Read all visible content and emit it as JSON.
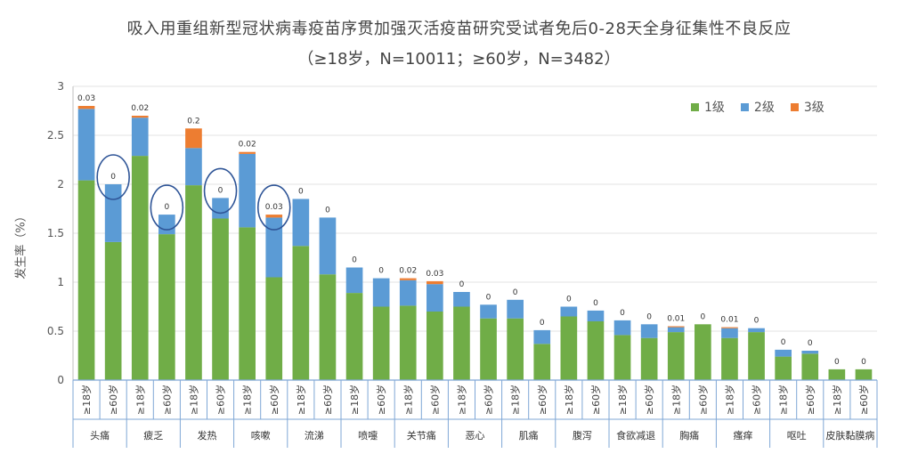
{
  "chart_data": {
    "type": "bar",
    "stacked": true,
    "title": "吸入用重组新型冠状病毒疫苗序贯加强灭活疫苗研究受试者免后0-28天全身征集性不良反应",
    "subtitle": "（≥18岁，N=10011；≥60岁，N=3482）",
    "ylabel": "发生率（%）",
    "ylim": [
      0,
      3
    ],
    "yticks": [
      "0",
      "0.5",
      "1",
      "1.5",
      "2",
      "2.5",
      "3"
    ],
    "grid": true,
    "legend_position": "top-right",
    "age_groups": [
      "≥18岁",
      "≥60岁"
    ],
    "groups": [
      "头痛",
      "疲乏",
      "发热",
      "咳嗽",
      "流涕",
      "喷嚏",
      "关节痛",
      "恶心",
      "肌痛",
      "腹泻",
      "食欲减退",
      "胸痛",
      "瘙痒",
      "呕吐",
      "皮肤黏膜病"
    ],
    "series": [
      {
        "name": "1级",
        "color": "#70ad47",
        "values": [
          2.04,
          1.41,
          2.29,
          1.49,
          1.99,
          1.65,
          1.56,
          1.05,
          1.37,
          1.08,
          0.89,
          0.75,
          0.76,
          0.7,
          0.75,
          0.63,
          0.63,
          0.37,
          0.65,
          0.6,
          0.46,
          0.43,
          0.49,
          0.57,
          0.43,
          0.49,
          0.24,
          0.27,
          0.11,
          0.11
        ]
      },
      {
        "name": "2级",
        "color": "#5b9bd5",
        "values": [
          0.73,
          0.59,
          0.39,
          0.2,
          0.38,
          0.21,
          0.75,
          0.61,
          0.48,
          0.58,
          0.26,
          0.29,
          0.26,
          0.28,
          0.15,
          0.14,
          0.19,
          0.14,
          0.1,
          0.11,
          0.15,
          0.14,
          0.05,
          0.0,
          0.1,
          0.04,
          0.07,
          0.03,
          0.0,
          0.0
        ]
      },
      {
        "name": "3级",
        "color": "#ed7d31",
        "values": [
          0.03,
          0.0,
          0.02,
          0.0,
          0.2,
          0.0,
          0.02,
          0.03,
          0.0,
          0.0,
          0.0,
          0.0,
          0.02,
          0.03,
          0.0,
          0.0,
          0.0,
          0.0,
          0.0,
          0.0,
          0.0,
          0.0,
          0.01,
          0.0,
          0.01,
          0.0,
          0.0,
          0.0,
          0.0,
          0.0
        ]
      }
    ],
    "data_labels": [
      "0.03",
      "0",
      "0.02",
      "0",
      "0.2",
      "0",
      "0.02",
      "0.03",
      "0",
      "0",
      "0",
      "0",
      "0.02",
      "0.03",
      "0",
      "0",
      "0",
      "0",
      "0",
      "0",
      "0",
      "0",
      "0.01",
      "0",
      "0.01",
      "0",
      "0",
      "0",
      "0",
      "0"
    ],
    "circled_bars": [
      1,
      3,
      5,
      7
    ]
  }
}
